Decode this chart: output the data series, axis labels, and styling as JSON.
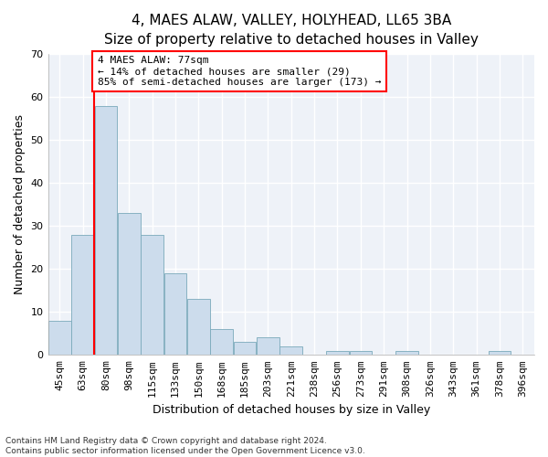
{
  "title1": "4, MAES ALAW, VALLEY, HOLYHEAD, LL65 3BA",
  "title2": "Size of property relative to detached houses in Valley",
  "xlabel": "Distribution of detached houses by size in Valley",
  "ylabel": "Number of detached properties",
  "categories": [
    "45sqm",
    "63sqm",
    "80sqm",
    "98sqm",
    "115sqm",
    "133sqm",
    "150sqm",
    "168sqm",
    "185sqm",
    "203sqm",
    "221sqm",
    "238sqm",
    "256sqm",
    "273sqm",
    "291sqm",
    "308sqm",
    "326sqm",
    "343sqm",
    "361sqm",
    "378sqm",
    "396sqm"
  ],
  "values": [
    8,
    28,
    58,
    33,
    28,
    19,
    13,
    6,
    3,
    4,
    2,
    0,
    1,
    1,
    0,
    1,
    0,
    0,
    0,
    1,
    0
  ],
  "bar_color": "#ccdcec",
  "bar_edge_color": "#7aaabb",
  "ylim": [
    0,
    70
  ],
  "yticks": [
    0,
    10,
    20,
    30,
    40,
    50,
    60,
    70
  ],
  "vline_index": 1.5,
  "annotation_text": "4 MAES ALAW: 77sqm\n← 14% of detached houses are smaller (29)\n85% of semi-detached houses are larger (173) →",
  "annotation_box_color": "white",
  "annotation_box_edge_color": "red",
  "vline_color": "red",
  "footnote1": "Contains HM Land Registry data © Crown copyright and database right 2024.",
  "footnote2": "Contains public sector information licensed under the Open Government Licence v3.0.",
  "background_color": "#ffffff",
  "plot_background_color": "#eef2f8",
  "grid_color": "#ffffff",
  "title1_fontsize": 11,
  "title2_fontsize": 10,
  "axis_label_fontsize": 9,
  "tick_fontsize": 8,
  "annotation_fontsize": 8
}
